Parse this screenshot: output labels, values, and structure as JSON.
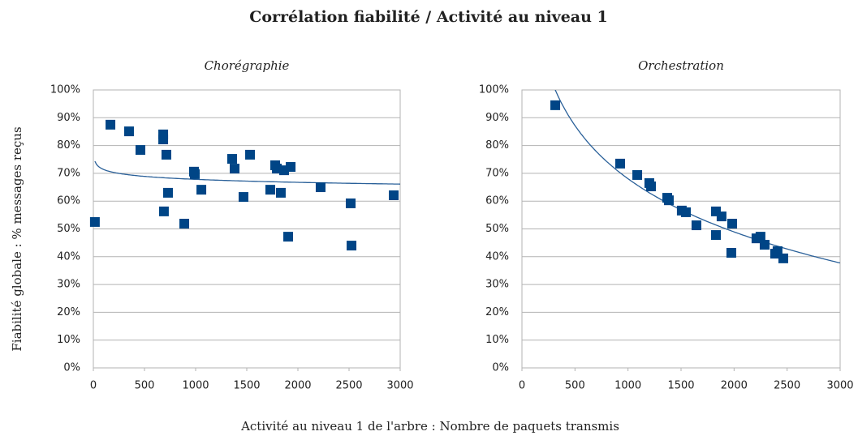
{
  "title": "Corrélation fiabilité / Activité au niveau 1",
  "ylabel": "Fiabilité globale : % messages reçus",
  "xlabel": "Activité au niveau 1 de l'arbre : Nombre de paquets transmis",
  "chart_data": [
    {
      "type": "scatter",
      "title": "Chorégraphie",
      "color": "#004586",
      "trendline": "log",
      "trend_color": "#2a6099",
      "grid": true,
      "x": [
        15,
        167,
        349,
        460,
        683,
        683,
        714,
        730,
        690,
        889,
        984,
        992,
        1056,
        1357,
        1381,
        1468,
        1532,
        1730,
        1778,
        1794,
        1833,
        1865,
        1929,
        1905,
        2222,
        2516,
        2524,
        2937
      ],
      "values": [
        52.5,
        87.5,
        85.1,
        78.4,
        82.2,
        84,
        76.7,
        63,
        56.3,
        51.9,
        70.6,
        69.7,
        64.1,
        75.2,
        71.7,
        61.5,
        76.7,
        64.1,
        72.9,
        71.7,
        63,
        71.1,
        72.3,
        47.2,
        65,
        59.2,
        44,
        62.1
      ],
      "xlim": [
        0,
        3000
      ],
      "xticks": [
        0,
        500,
        1000,
        1500,
        2000,
        2500,
        3000
      ],
      "ylim": [
        0,
        100
      ],
      "yticks": [
        {
          "value": 0,
          "label": "0%"
        },
        {
          "value": 10,
          "label": "10%"
        },
        {
          "value": 20,
          "label": "20%"
        },
        {
          "value": 30,
          "label": "30%"
        },
        {
          "value": 40,
          "label": "40%"
        },
        {
          "value": 50,
          "label": "50%"
        },
        {
          "value": 60,
          "label": "60%"
        },
        {
          "value": 70,
          "label": "70%"
        },
        {
          "value": 80,
          "label": "80%"
        },
        {
          "value": 90,
          "label": "90%"
        },
        {
          "value": 100,
          "label": "100%"
        }
      ]
    },
    {
      "type": "scatter",
      "title": "Orchestration",
      "color": "#004586",
      "trendline": "log",
      "trend_color": "#2a6099",
      "grid": true,
      "x": [
        314,
        926,
        1087,
        1201,
        1217,
        1370,
        1385,
        1507,
        1546,
        1645,
        1829,
        1882,
        1829,
        1982,
        1974,
        2211,
        2249,
        2288,
        2387,
        2410,
        2464
      ],
      "values": [
        94.5,
        73.5,
        69.4,
        66.5,
        65.3,
        61.2,
        60.3,
        56.6,
        56,
        51.3,
        56.3,
        54.5,
        47.8,
        51.9,
        41.4,
        46.6,
        47.2,
        44.3,
        41.1,
        42,
        39.4
      ],
      "xlim": [
        0,
        3000
      ],
      "xticks": [
        0,
        500,
        1000,
        1500,
        2000,
        2500,
        3000
      ],
      "ylim": [
        0,
        100
      ],
      "yticks": [
        {
          "value": 0,
          "label": "0%"
        },
        {
          "value": 10,
          "label": "10%"
        },
        {
          "value": 20,
          "label": "20%"
        },
        {
          "value": 30,
          "label": "30%"
        },
        {
          "value": 40,
          "label": "40%"
        },
        {
          "value": 50,
          "label": "50%"
        },
        {
          "value": 60,
          "label": "60%"
        },
        {
          "value": 70,
          "label": "70%"
        },
        {
          "value": 80,
          "label": "80%"
        },
        {
          "value": 90,
          "label": "90%"
        },
        {
          "value": 100,
          "label": "100%"
        }
      ]
    }
  ]
}
